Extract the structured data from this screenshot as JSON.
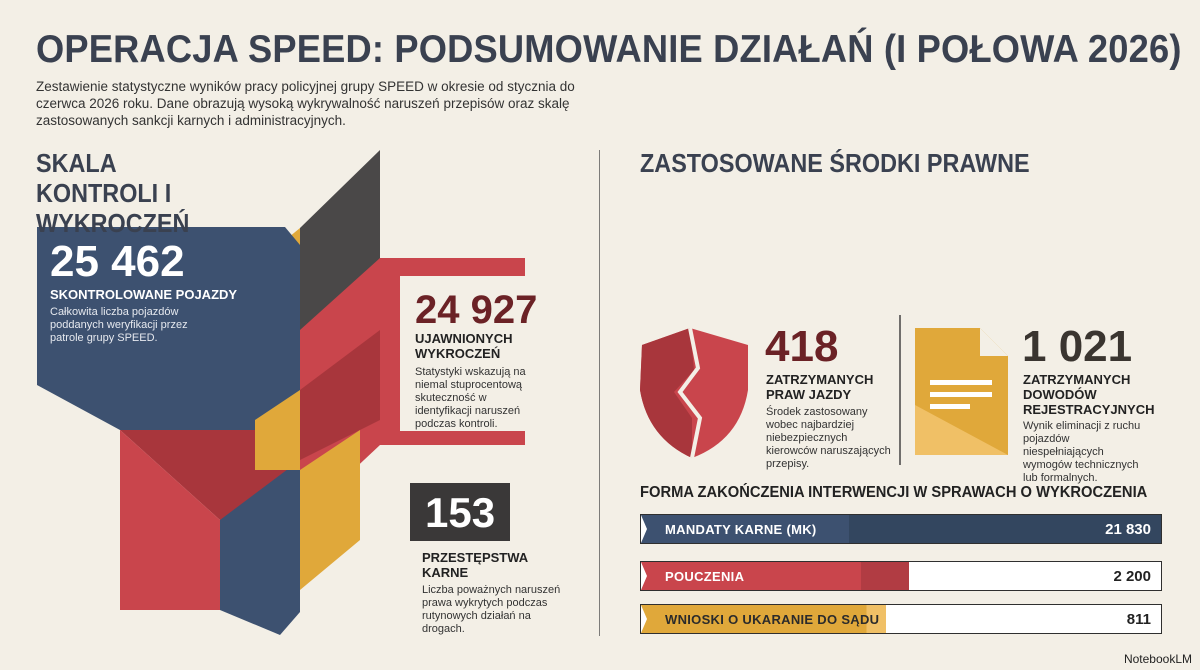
{
  "header": {
    "title": "OPERACJA SPEED: PODSUMOWANIE DZIAŁAŃ (I POŁOWA 2026)",
    "subtitle": "Zestawienie statystyczne wyników pracy policyjnej grupy SPEED w okresie od stycznia do czerwca 2026 roku. Dane obrazują wysoką wykrywalność naruszeń przepisów oraz skalę zastosowanych sankcji karnych i administracyjnych."
  },
  "left": {
    "heading": "SKALA KONTROLI I WYKROCZEŃ",
    "stats": [
      {
        "value": "25 462",
        "label": "SKONTROLOWANE POJAZDY",
        "description": "Całkowita liczba pojazdów poddanych weryfikacji przez patrole grupy SPEED."
      },
      {
        "value": "24 927",
        "label": "UJAWNIONYCH WYKROCZEŃ",
        "description": "Statystyki wskazują na niemal stuprocentową skuteczność w identyfikacji naruszeń podczas kontroli."
      },
      {
        "value": "153",
        "label": "PRZESTĘPSTWA KARNE",
        "description": "Liczba poważnych naruszeń prawa wykrytych podczas rutynowych działań na drogach."
      }
    ]
  },
  "right": {
    "heading": "ZASTOSOWANE ŚRODKI PRAWNE",
    "measures": [
      {
        "value": "418",
        "label": "ZATRZYMANYCH PRAW JAZDY",
        "description": "Środek zastosowany wobec najbardziej niebezpiecznych kierowców naruszających przepisy."
      },
      {
        "value": "1 021",
        "label": "ZATRZYMANYCH DOWODÓW REJESTRACYJNYCH",
        "description": "Wynik eliminacji z ruchu pojazdów niespełniających wymogów technicznych lub formalnych."
      }
    ],
    "outcomes": {
      "title": "FORMA ZAKOŃCZENIA INTERWENCJI W SPRAWACH O WYKROCZENIA",
      "rows": [
        {
          "label": "MANDATY KARNE (MK)",
          "value": "21 830"
        },
        {
          "label": "POUCZENIA",
          "value": "2 200"
        },
        {
          "label": "WNIOSKI O UKARANIE DO SĄDU",
          "value": "811"
        }
      ]
    }
  },
  "footer": {
    "brand": "NotebookLM"
  }
}
